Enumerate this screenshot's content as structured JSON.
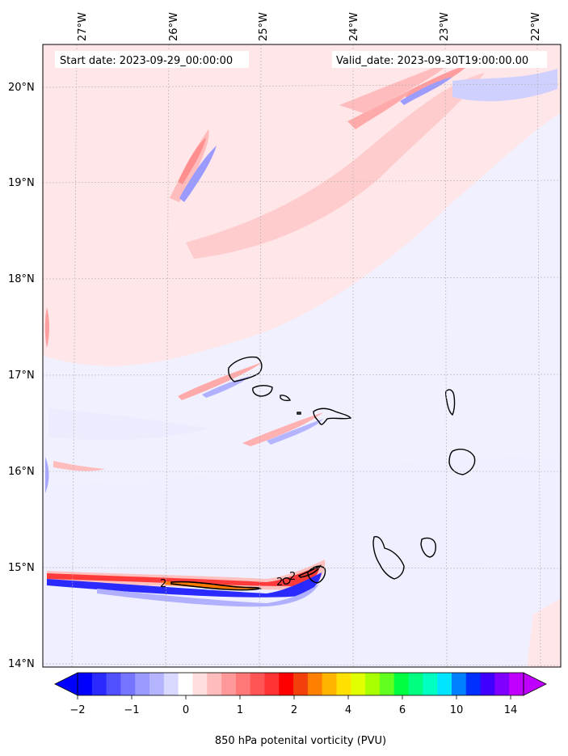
{
  "header": {
    "start_date": "Start date: 2023-09-29_00:00:00",
    "valid_date": "Valid_date: 2023-09-30T19:00:00.00"
  },
  "map": {
    "lon_labels": [
      "27°W",
      "26°W",
      "25°W",
      "24°W",
      "23°W",
      "22°W"
    ],
    "lat_labels": [
      "20°N",
      "19°N",
      "18°N",
      "17°N",
      "16°N",
      "15°N",
      "14°N"
    ],
    "contour_labels": [
      "2",
      "2",
      "2"
    ],
    "background_color": "#ffe6e8"
  },
  "colorbar": {
    "title": "850 hPa potenital vorticity (PVU)",
    "tick_labels": [
      "−2",
      "−1",
      "0",
      "1",
      "2",
      "4",
      "6",
      "10",
      "14"
    ],
    "colors": [
      "#0000ff",
      "#2a2aff",
      "#5050ff",
      "#7575ff",
      "#9999ff",
      "#b5b5ff",
      "#d9d9ff",
      "#ffffff",
      "#ffdede",
      "#ffbcbc",
      "#ff9999",
      "#ff7777",
      "#ff5555",
      "#ff3333",
      "#ff0000",
      "#f2400a",
      "#ff8000",
      "#ffb400",
      "#ffe000",
      "#e0ff00",
      "#a8ff00",
      "#60ff20",
      "#00ff40",
      "#00ff80",
      "#00ffc0",
      "#00e5ff",
      "#0080ff",
      "#0030ff",
      "#4000ff",
      "#8000ff",
      "#c000ff"
    ]
  }
}
